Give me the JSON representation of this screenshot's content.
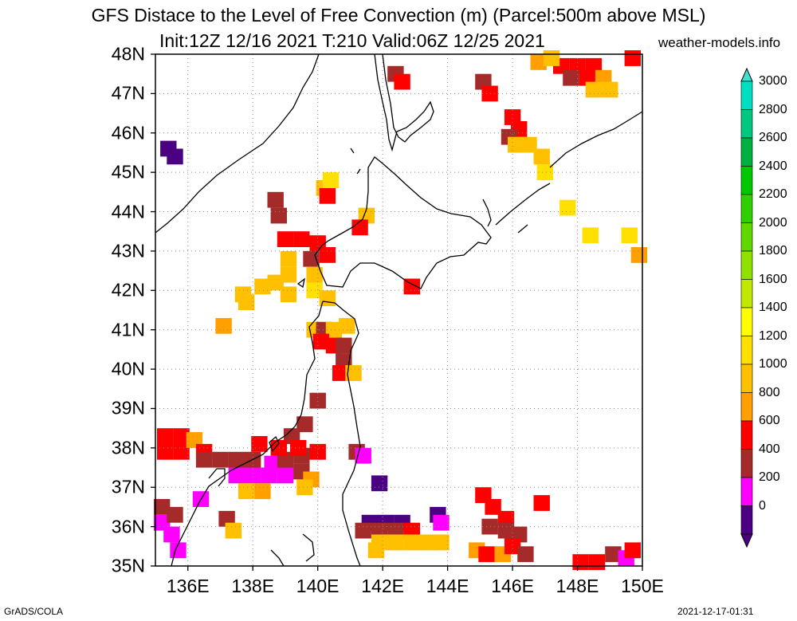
{
  "title": {
    "line1": "GFS Distace to the Level of Free Convection (m) (Parcel:500m above MSL)",
    "line2": "Init:12Z 12/16 2021 T:210 Valid:06Z 12/25 2021",
    "site": "weather-models.info"
  },
  "footer": {
    "left": "GrADS/COLA",
    "right": "2021-12-17-01:31"
  },
  "axes": {
    "lat_labels": [
      "48N",
      "47N",
      "46N",
      "45N",
      "44N",
      "43N",
      "42N",
      "41N",
      "40N",
      "39N",
      "38N",
      "37N",
      "36N",
      "35N"
    ],
    "lon_labels": [
      "136E",
      "138E",
      "140E",
      "142E",
      "144E",
      "146E",
      "148E",
      "150E"
    ],
    "lat_range": [
      35,
      48
    ],
    "lon_range": [
      135,
      150
    ],
    "grid": "dotted"
  },
  "colorbar": {
    "labels": [
      "3000",
      "2800",
      "2600",
      "2400",
      "2200",
      "2000",
      "1800",
      "1600",
      "1400",
      "1200",
      "1000",
      "800",
      "600",
      "400",
      "200",
      "0"
    ],
    "colors": [
      "#00e0c0",
      "#00c880",
      "#00b040",
      "#00c800",
      "#30d000",
      "#60d800",
      "#90e000",
      "#c0e800",
      "#ffff00",
      "#ffe000",
      "#ffc000",
      "#ffa000",
      "#ff0000",
      "#a52a2a",
      "#ff00ff",
      "#4b0082"
    ],
    "top_color": "#40e0d0",
    "bottom_color": "#4b0082"
  },
  "palette": {
    "0": "#4b0082",
    "200": "#ff00ff",
    "400": "#a52a2a",
    "600": "#ff0000",
    "800": "#ffa000",
    "1000": "#ffc000",
    "1200": "#ffe000"
  },
  "cells": [
    {
      "lon": 147.5,
      "lat": 47.7,
      "v": "600"
    },
    {
      "lon": 148.0,
      "lat": 47.7,
      "v": "600"
    },
    {
      "lon": 148.5,
      "lat": 47.7,
      "v": "600"
    },
    {
      "lon": 147.8,
      "lat": 47.4,
      "v": "400"
    },
    {
      "lon": 148.3,
      "lat": 47.4,
      "v": "600"
    },
    {
      "lon": 148.8,
      "lat": 47.4,
      "v": "800"
    },
    {
      "lon": 148.5,
      "lat": 47.1,
      "v": "1000"
    },
    {
      "lon": 149.0,
      "lat": 47.1,
      "v": "1000"
    },
    {
      "lon": 149.7,
      "lat": 47.9,
      "v": "600"
    },
    {
      "lon": 146.8,
      "lat": 47.8,
      "v": "800"
    },
    {
      "lon": 147.2,
      "lat": 47.9,
      "v": "1000"
    },
    {
      "lon": 142.4,
      "lat": 47.5,
      "v": "400"
    },
    {
      "lon": 142.6,
      "lat": 47.3,
      "v": "600"
    },
    {
      "lon": 145.1,
      "lat": 47.3,
      "v": "400"
    },
    {
      "lon": 145.3,
      "lat": 47.0,
      "v": "600"
    },
    {
      "lon": 146.0,
      "lat": 46.4,
      "v": "600"
    },
    {
      "lon": 146.2,
      "lat": 46.1,
      "v": "600"
    },
    {
      "lon": 145.9,
      "lat": 45.9,
      "v": "400"
    },
    {
      "lon": 146.1,
      "lat": 45.7,
      "v": "1000"
    },
    {
      "lon": 146.5,
      "lat": 45.7,
      "v": "1000"
    },
    {
      "lon": 146.9,
      "lat": 45.4,
      "v": "1000"
    },
    {
      "lon": 147.0,
      "lat": 45.0,
      "v": "1200"
    },
    {
      "lon": 135.4,
      "lat": 45.6,
      "v": "0"
    },
    {
      "lon": 135.6,
      "lat": 45.4,
      "v": "0"
    },
    {
      "lon": 140.2,
      "lat": 44.6,
      "v": "1000"
    },
    {
      "lon": 140.3,
      "lat": 44.4,
      "v": "600"
    },
    {
      "lon": 140.4,
      "lat": 44.8,
      "v": "1200"
    },
    {
      "lon": 138.7,
      "lat": 44.3,
      "v": "400"
    },
    {
      "lon": 138.8,
      "lat": 43.9,
      "v": "400"
    },
    {
      "lon": 141.5,
      "lat": 43.9,
      "v": "1000"
    },
    {
      "lon": 141.3,
      "lat": 43.6,
      "v": "600"
    },
    {
      "lon": 147.7,
      "lat": 44.1,
      "v": "1200"
    },
    {
      "lon": 148.4,
      "lat": 43.4,
      "v": "1200"
    },
    {
      "lon": 149.6,
      "lat": 43.4,
      "v": "1200"
    },
    {
      "lon": 149.9,
      "lat": 42.9,
      "v": "800"
    },
    {
      "lon": 139.0,
      "lat": 43.3,
      "v": "600"
    },
    {
      "lon": 139.5,
      "lat": 43.3,
      "v": "600"
    },
    {
      "lon": 140.0,
      "lat": 43.2,
      "v": "600"
    },
    {
      "lon": 139.8,
      "lat": 42.8,
      "v": "400"
    },
    {
      "lon": 140.3,
      "lat": 42.9,
      "v": "600"
    },
    {
      "lon": 139.1,
      "lat": 42.8,
      "v": "1000"
    },
    {
      "lon": 139.1,
      "lat": 42.4,
      "v": "1000"
    },
    {
      "lon": 138.7,
      "lat": 42.2,
      "v": "1000"
    },
    {
      "lon": 138.3,
      "lat": 42.1,
      "v": "1000"
    },
    {
      "lon": 139.1,
      "lat": 41.9,
      "v": "1000"
    },
    {
      "lon": 137.7,
      "lat": 41.9,
      "v": "1000"
    },
    {
      "lon": 137.8,
      "lat": 41.7,
      "v": "1000"
    },
    {
      "lon": 139.9,
      "lat": 42.4,
      "v": "1000"
    },
    {
      "lon": 139.9,
      "lat": 42.0,
      "v": "1200"
    },
    {
      "lon": 140.3,
      "lat": 41.8,
      "v": "1000"
    },
    {
      "lon": 142.9,
      "lat": 42.1,
      "v": "600"
    },
    {
      "lon": 137.1,
      "lat": 41.1,
      "v": "800"
    },
    {
      "lon": 139.9,
      "lat": 41.0,
      "v": "1000"
    },
    {
      "lon": 140.2,
      "lat": 41.0,
      "v": "400"
    },
    {
      "lon": 140.5,
      "lat": 41.0,
      "v": "1000"
    },
    {
      "lon": 140.9,
      "lat": 41.1,
      "v": "1000"
    },
    {
      "lon": 140.1,
      "lat": 40.7,
      "v": "600"
    },
    {
      "lon": 140.5,
      "lat": 40.6,
      "v": "600"
    },
    {
      "lon": 140.8,
      "lat": 40.6,
      "v": "400"
    },
    {
      "lon": 140.8,
      "lat": 40.2,
      "v": "400"
    },
    {
      "lon": 140.7,
      "lat": 39.9,
      "v": "600"
    },
    {
      "lon": 141.1,
      "lat": 39.9,
      "v": "1000"
    },
    {
      "lon": 140.0,
      "lat": 39.2,
      "v": "400"
    },
    {
      "lon": 135.3,
      "lat": 38.3,
      "v": "600"
    },
    {
      "lon": 135.8,
      "lat": 38.3,
      "v": "600"
    },
    {
      "lon": 135.3,
      "lat": 37.9,
      "v": "600"
    },
    {
      "lon": 135.8,
      "lat": 37.9,
      "v": "600"
    },
    {
      "lon": 136.2,
      "lat": 38.2,
      "v": "800"
    },
    {
      "lon": 136.5,
      "lat": 37.9,
      "v": "600"
    },
    {
      "lon": 136.5,
      "lat": 37.7,
      "v": "400"
    },
    {
      "lon": 137.0,
      "lat": 37.7,
      "v": "400"
    },
    {
      "lon": 137.5,
      "lat": 37.7,
      "v": "400"
    },
    {
      "lon": 138.0,
      "lat": 37.7,
      "v": "400"
    },
    {
      "lon": 137.5,
      "lat": 37.3,
      "v": "200"
    },
    {
      "lon": 138.0,
      "lat": 37.3,
      "v": "200"
    },
    {
      "lon": 138.5,
      "lat": 37.3,
      "v": "200"
    },
    {
      "lon": 139.0,
      "lat": 37.3,
      "v": "200"
    },
    {
      "lon": 137.8,
      "lat": 36.9,
      "v": "1000"
    },
    {
      "lon": 138.3,
      "lat": 36.9,
      "v": "800"
    },
    {
      "lon": 138.6,
      "lat": 37.6,
      "v": "200"
    },
    {
      "lon": 139.0,
      "lat": 37.7,
      "v": "400"
    },
    {
      "lon": 139.5,
      "lat": 37.8,
      "v": "400"
    },
    {
      "lon": 139.5,
      "lat": 37.4,
      "v": "400"
    },
    {
      "lon": 139.2,
      "lat": 38.3,
      "v": "400"
    },
    {
      "lon": 139.6,
      "lat": 38.6,
      "v": "400"
    },
    {
      "lon": 139.4,
      "lat": 38.0,
      "v": "600"
    },
    {
      "lon": 138.2,
      "lat": 38.1,
      "v": "600"
    },
    {
      "lon": 138.8,
      "lat": 38.0,
      "v": "600"
    },
    {
      "lon": 140.0,
      "lat": 37.9,
      "v": "600"
    },
    {
      "lon": 139.8,
      "lat": 37.2,
      "v": "800"
    },
    {
      "lon": 139.6,
      "lat": 37.0,
      "v": "1000"
    },
    {
      "lon": 141.2,
      "lat": 37.9,
      "v": "400"
    },
    {
      "lon": 141.4,
      "lat": 37.8,
      "v": "200"
    },
    {
      "lon": 141.9,
      "lat": 37.1,
      "v": "0"
    },
    {
      "lon": 136.4,
      "lat": 36.7,
      "v": "200"
    },
    {
      "lon": 135.2,
      "lat": 36.5,
      "v": "400"
    },
    {
      "lon": 135.2,
      "lat": 36.1,
      "v": "200"
    },
    {
      "lon": 135.5,
      "lat": 35.8,
      "v": "200"
    },
    {
      "lon": 135.6,
      "lat": 36.3,
      "v": "400"
    },
    {
      "lon": 135.7,
      "lat": 35.4,
      "v": "200"
    },
    {
      "lon": 137.2,
      "lat": 36.2,
      "v": "400"
    },
    {
      "lon": 137.4,
      "lat": 35.9,
      "v": "1000"
    },
    {
      "lon": 141.6,
      "lat": 36.1,
      "v": "0"
    },
    {
      "lon": 142.1,
      "lat": 36.1,
      "v": "0"
    },
    {
      "lon": 142.6,
      "lat": 36.1,
      "v": "0"
    },
    {
      "lon": 141.9,
      "lat": 35.9,
      "v": "400"
    },
    {
      "lon": 142.4,
      "lat": 35.9,
      "v": "400"
    },
    {
      "lon": 142.9,
      "lat": 35.9,
      "v": "600"
    },
    {
      "lon": 141.4,
      "lat": 35.9,
      "v": "400"
    },
    {
      "lon": 141.9,
      "lat": 35.6,
      "v": "1000"
    },
    {
      "lon": 142.4,
      "lat": 35.6,
      "v": "1000"
    },
    {
      "lon": 142.9,
      "lat": 35.6,
      "v": "1000"
    },
    {
      "lon": 143.4,
      "lat": 35.6,
      "v": "1000"
    },
    {
      "lon": 143.8,
      "lat": 35.6,
      "v": "1000"
    },
    {
      "lon": 141.8,
      "lat": 35.4,
      "v": "1000"
    },
    {
      "lon": 143.7,
      "lat": 36.3,
      "v": "0"
    },
    {
      "lon": 143.8,
      "lat": 36.1,
      "v": "200"
    },
    {
      "lon": 144.9,
      "lat": 35.4,
      "v": "800"
    },
    {
      "lon": 145.2,
      "lat": 35.3,
      "v": "600"
    },
    {
      "lon": 145.7,
      "lat": 35.3,
      "v": "800"
    },
    {
      "lon": 145.1,
      "lat": 36.8,
      "v": "600"
    },
    {
      "lon": 145.4,
      "lat": 36.5,
      "v": "600"
    },
    {
      "lon": 145.8,
      "lat": 36.2,
      "v": "600"
    },
    {
      "lon": 145.3,
      "lat": 36.0,
      "v": "400"
    },
    {
      "lon": 145.8,
      "lat": 35.9,
      "v": "400"
    },
    {
      "lon": 146.2,
      "lat": 35.8,
      "v": "400"
    },
    {
      "lon": 146.0,
      "lat": 35.5,
      "v": "600"
    },
    {
      "lon": 146.4,
      "lat": 35.3,
      "v": "400"
    },
    {
      "lon": 146.9,
      "lat": 36.6,
      "v": "600"
    },
    {
      "lon": 148.1,
      "lat": 35.1,
      "v": "600"
    },
    {
      "lon": 148.6,
      "lat": 35.1,
      "v": "600"
    },
    {
      "lon": 149.1,
      "lat": 35.3,
      "v": "400"
    },
    {
      "lon": 149.5,
      "lat": 35.2,
      "v": "200"
    },
    {
      "lon": 149.7,
      "lat": 35.4,
      "v": "600"
    }
  ]
}
